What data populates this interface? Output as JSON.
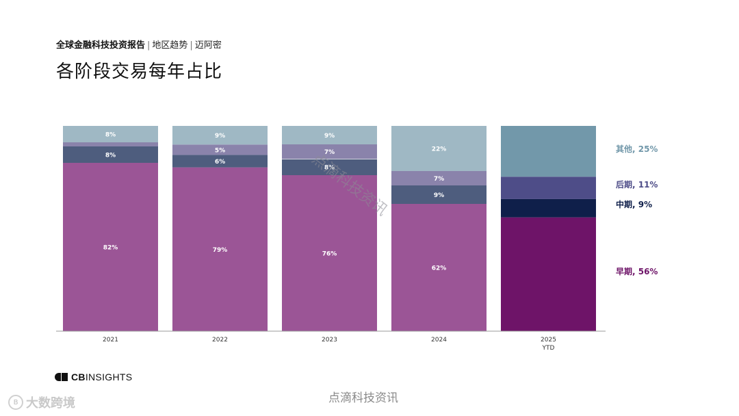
{
  "header": {
    "subtitle_main": "全球金融科技投资报告",
    "subtitle_sep1": "|",
    "subtitle_region": "地区趋势",
    "subtitle_sep2": "|",
    "subtitle_city": "迈阿密",
    "title": "各阶段交易每年占比"
  },
  "chart_data": {
    "type": "bar",
    "stacked": true,
    "normalized": true,
    "categories": [
      "2021",
      "2022",
      "2023",
      "2024",
      "2025\nYTD"
    ],
    "series": [
      {
        "name": "早期",
        "values": [
          82,
          79,
          76,
          62,
          56
        ],
        "labels": [
          "82%",
          "79%",
          "76%",
          "62%",
          ""
        ],
        "color": "#9b5596",
        "color_last": "#6e1468"
      },
      {
        "name": "中期",
        "values": [
          8,
          6,
          8,
          9,
          9
        ],
        "labels": [
          "8%",
          "6%",
          "8%",
          "9%",
          ""
        ],
        "color": "#4e5d7e",
        "color_last": "#0f1f4a"
      },
      {
        "name": "后期",
        "values": [
          2,
          5,
          7,
          7,
          11
        ],
        "labels": [
          "",
          "5%",
          "7%",
          "7%",
          ""
        ],
        "color": "#8a83ab",
        "color_last": "#4e4d88"
      },
      {
        "name": "其他",
        "values": [
          8,
          9,
          9,
          22,
          25
        ],
        "labels": [
          "8%",
          "9%",
          "9%",
          "22%",
          ""
        ],
        "color": "#9fb8c4",
        "color_last": "#7298aa"
      }
    ],
    "legend": {
      "position": "right",
      "entries": [
        {
          "label": "其他, 25%",
          "color": "#7298aa"
        },
        {
          "label": "后期, 11%",
          "color": "#4e4d88"
        },
        {
          "label": "中期, 9%",
          "color": "#0f1f4a"
        },
        {
          "label": "早期, 56%",
          "color": "#6e1468"
        }
      ]
    },
    "ylim": [
      0,
      100
    ],
    "grid": false
  },
  "brand": {
    "bold": "CB",
    "rest": "INSIGHTS"
  },
  "watermarks": {
    "center": "点滴科技资讯",
    "bottom": "点滴科技资讯",
    "logo_text": "大数跨境",
    "logo_mark": "B"
  }
}
